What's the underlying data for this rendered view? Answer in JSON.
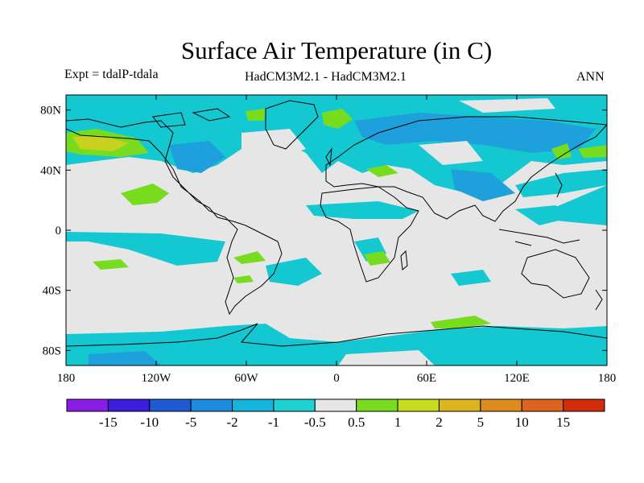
{
  "header": {
    "title": "Surface Air Temperature (in C)",
    "experiment": "Expt = tdalP-tdala",
    "models": "HadCM3M2.1 - HadCM3M2.1",
    "season": "ANN"
  },
  "axes": {
    "y_ticks": [
      "80N",
      "40N",
      "0",
      "40S",
      "80S"
    ],
    "x_ticks": [
      "180",
      "120W",
      "60W",
      "0",
      "60E",
      "120E",
      "180"
    ]
  },
  "colorbar": {
    "colors": [
      "#8a1ee6",
      "#3c1edc",
      "#1e5ad2",
      "#1e8cdc",
      "#14b4dc",
      "#1ed2d2",
      "#e6e6e6",
      "#78dc1e",
      "#c8dc1e",
      "#dcb41e",
      "#dc8c1e",
      "#dc641e",
      "#d22d0a"
    ],
    "labels": [
      "-15",
      "-10",
      "-5",
      "-2",
      "-1",
      "-0.5",
      "0.5",
      "1",
      "2",
      "5",
      "10",
      "15"
    ]
  },
  "map_colors": {
    "neutral": "#e6e6e6",
    "cyan": "#14c8d2",
    "blue": "#1ea0dc",
    "green": "#78dc1e",
    "yellow": "#c8d21e"
  }
}
